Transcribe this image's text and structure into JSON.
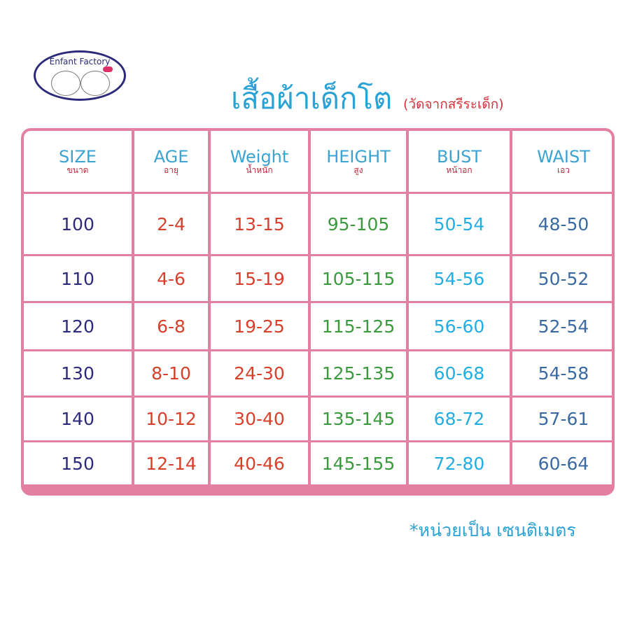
{
  "logo": {
    "text": "Enfant Factory"
  },
  "title": "เสื้อผ้าเด็กโต",
  "subtitle": "(วัดจากสรีระเด็ก)",
  "colors": {
    "border": "#e37fa0",
    "title": "#2ba2d6",
    "size": "#2e2a7c",
    "age_weight": "#d7402c",
    "height": "#3b9a3e",
    "bust": "#22aee0",
    "waist": "#3b6aa3"
  },
  "table": {
    "headers": [
      {
        "en": "SIZE",
        "th": "ขนาด"
      },
      {
        "en": "AGE",
        "th": "อายุ"
      },
      {
        "en": "Weight",
        "th": "น้ำหนัก"
      },
      {
        "en": "HEIGHT",
        "th": "สูง"
      },
      {
        "en": "BUST",
        "th": "หน้าอก"
      },
      {
        "en": "WAIST",
        "th": "เอว"
      }
    ],
    "rows": [
      [
        "100",
        "2-4",
        "13-15",
        "95-105",
        "50-54",
        "48-50"
      ],
      [
        "110",
        "4-6",
        "15-19",
        "105-115",
        "54-56",
        "50-52"
      ],
      [
        "120",
        "6-8",
        "19-25",
        "115-125",
        "56-60",
        "52-54"
      ],
      [
        "130",
        "8-10",
        "24-30",
        "125-135",
        "60-68",
        "54-58"
      ],
      [
        "140",
        "10-12",
        "30-40",
        "135-145",
        "68-72",
        "57-61"
      ],
      [
        "150",
        "12-14",
        "40-46",
        "145-155",
        "72-80",
        "60-64"
      ]
    ]
  },
  "footer": "*หน่วยเป็น เซนติเมตร"
}
